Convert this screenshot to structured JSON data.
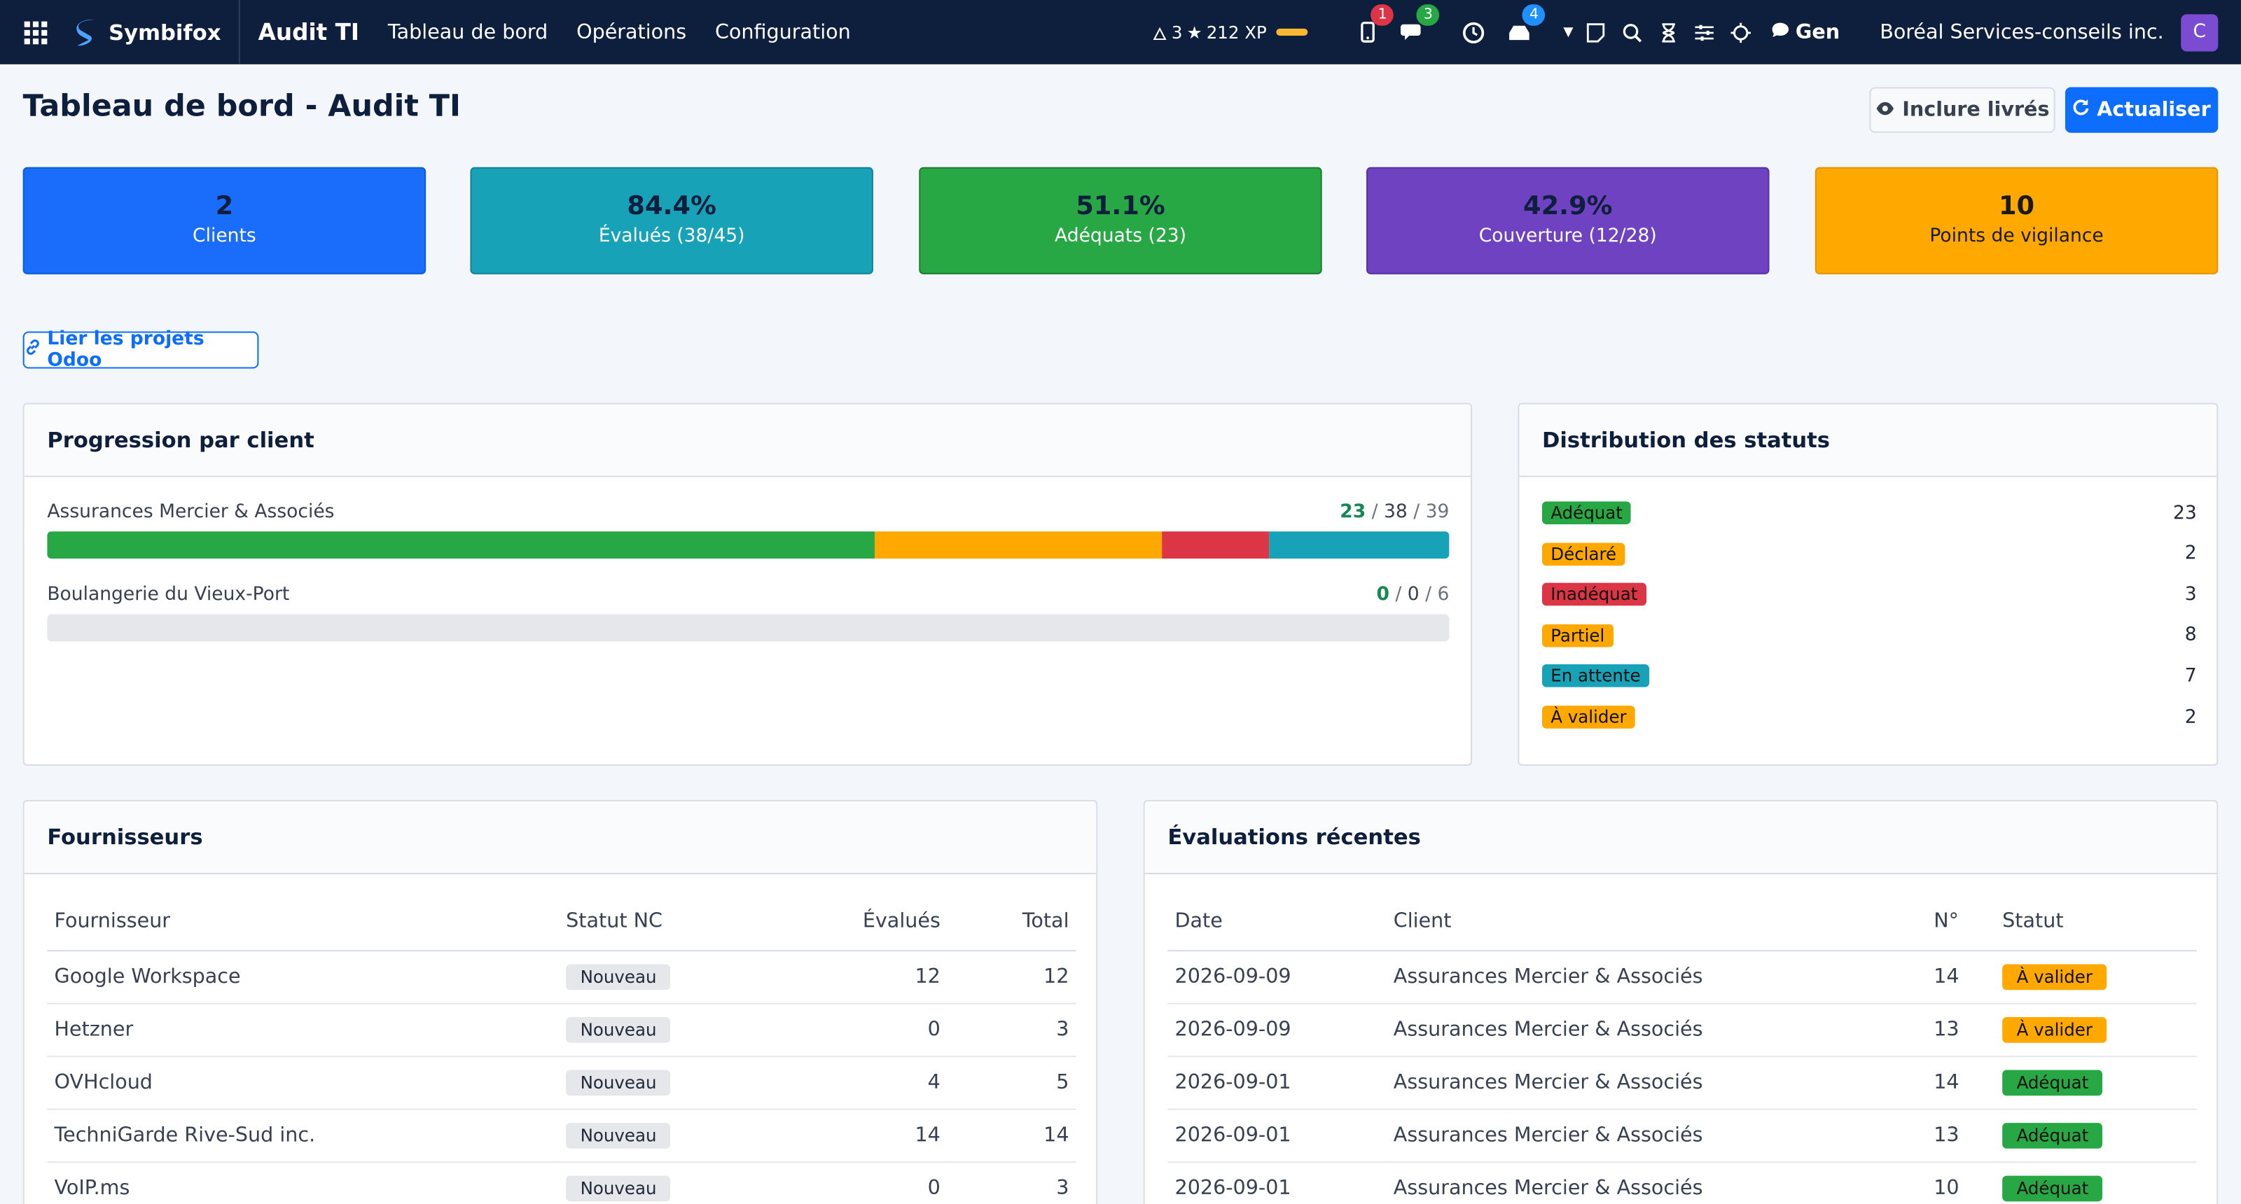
{
  "nav": {
    "brand": "Symbifox",
    "module": "Audit TI",
    "menu": [
      "Tableau de bord",
      "Opérations",
      "Configuration"
    ],
    "gamification": {
      "streak": "3",
      "xp": "212 XP"
    },
    "badges": {
      "mobile": "1",
      "chat": "3",
      "activity": "4"
    },
    "gen_label": "Gen",
    "company": "Boréal Services-conseils inc.",
    "avatar_letter": "C"
  },
  "header": {
    "title": "Tableau de bord - Audit TI",
    "include_label": "Inclure livrés",
    "refresh_label": "Actualiser"
  },
  "kpis": [
    {
      "value": "2",
      "label": "Clients",
      "color": "#0d6efd"
    },
    {
      "value": "84.4%",
      "label": "Évalués (38/45)",
      "color": "#17a2b8"
    },
    {
      "value": "51.1%",
      "label": "Adéquats (23)",
      "color": "#28a745"
    },
    {
      "value": "42.9%",
      "label": "Couverture (12/28)",
      "color": "#6f42c1"
    },
    {
      "value": "10",
      "label": "Points de vigilance",
      "color": "#ffa800"
    }
  ],
  "link_projects_label": "Lier les projets Odoo",
  "progress": {
    "title": "Progression par client",
    "clients": [
      {
        "name": "Assurances Mercier & Associés",
        "adequate": "23",
        "evaluated": "38",
        "total": "39",
        "segments": {
          "adequat": 23,
          "partiel": 8,
          "inadequat": 3,
          "en_attente": 5,
          "total": 39
        }
      },
      {
        "name": "Boulangerie du Vieux-Port",
        "adequate": "0",
        "evaluated": "0",
        "total": "6",
        "segments": {
          "adequat": 0,
          "partiel": 0,
          "inadequat": 0,
          "en_attente": 0,
          "total": 6
        }
      }
    ]
  },
  "distribution": {
    "title": "Distribution des statuts",
    "items": [
      {
        "label": "Adéquat",
        "count": "23",
        "color": "#28a745",
        "text": "#111"
      },
      {
        "label": "Déclaré",
        "count": "2",
        "color": "#ffa800",
        "text": "#111"
      },
      {
        "label": "Inadéquat",
        "count": "3",
        "color": "#dc3545",
        "text": "#111"
      },
      {
        "label": "Partiel",
        "count": "8",
        "color": "#ffa800",
        "text": "#111"
      },
      {
        "label": "En attente",
        "count": "7",
        "color": "#17a2b8",
        "text": "#111"
      },
      {
        "label": "À valider",
        "count": "2",
        "color": "#ffa800",
        "text": "#111"
      }
    ]
  },
  "suppliers": {
    "title": "Fournisseurs",
    "columns": [
      "Fournisseur",
      "Statut NC",
      "Évalués",
      "Total"
    ],
    "rows": [
      {
        "name": "Google Workspace",
        "status": "Nouveau",
        "evaluated": "12",
        "total": "12"
      },
      {
        "name": "Hetzner",
        "status": "Nouveau",
        "evaluated": "0",
        "total": "3"
      },
      {
        "name": "OVHcloud",
        "status": "Nouveau",
        "evaluated": "4",
        "total": "5"
      },
      {
        "name": "TechniGarde Rive-Sud inc.",
        "status": "Nouveau",
        "evaluated": "14",
        "total": "14"
      },
      {
        "name": "VoIP.ms",
        "status": "Nouveau",
        "evaluated": "0",
        "total": "3"
      }
    ]
  },
  "recent": {
    "title": "Évaluations récentes",
    "columns": [
      "Date",
      "Client",
      "N°",
      "Statut"
    ],
    "rows": [
      {
        "date": "2026-09-09",
        "client": "Assurances Mercier & Associés",
        "no": "14",
        "status": "À valider",
        "kind": "wait"
      },
      {
        "date": "2026-09-09",
        "client": "Assurances Mercier & Associés",
        "no": "13",
        "status": "À valider",
        "kind": "wait"
      },
      {
        "date": "2026-09-01",
        "client": "Assurances Mercier & Associés",
        "no": "14",
        "status": "Adéquat",
        "kind": "ok"
      },
      {
        "date": "2026-09-01",
        "client": "Assurances Mercier & Associés",
        "no": "13",
        "status": "Adéquat",
        "kind": "ok"
      },
      {
        "date": "2026-09-01",
        "client": "Assurances Mercier & Associés",
        "no": "10",
        "status": "Adéquat",
        "kind": "ok"
      }
    ]
  }
}
